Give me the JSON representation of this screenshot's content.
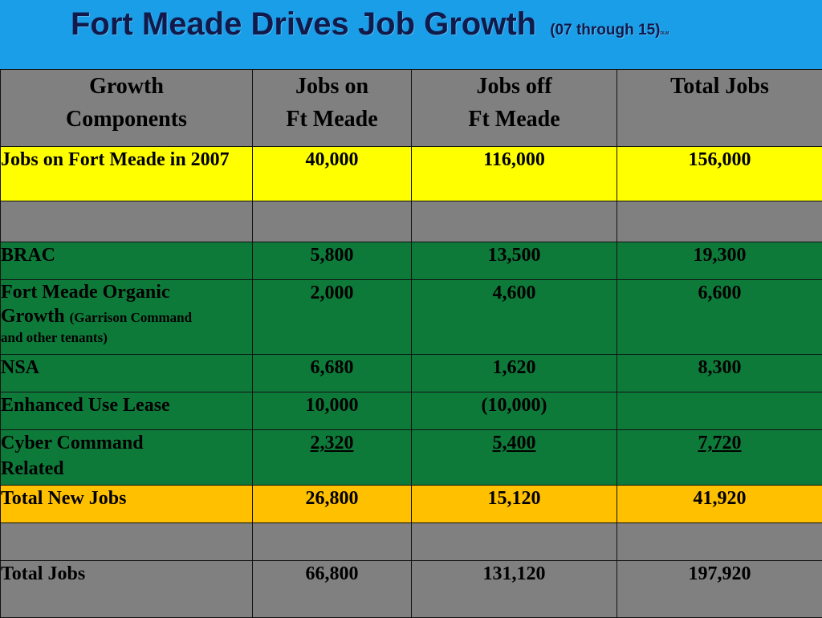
{
  "header": {
    "title": "Fort Meade Drives Job Growth",
    "subtitle": "(07 through 15)",
    "tiny_mark": "DLM"
  },
  "table": {
    "columns": [
      [
        "Growth",
        "Components"
      ],
      [
        "Jobs on",
        "Ft Meade"
      ],
      [
        "Jobs off",
        "Ft Meade"
      ],
      [
        "Total Jobs"
      ]
    ],
    "rows": [
      {
        "label": "Jobs on Fort Meade in 2007",
        "on": "40,000",
        "off": "116,000",
        "total": "156,000"
      },
      {
        "label": "BRAC",
        "on": "5,800",
        "off": "13,500",
        "total": "19,300"
      },
      {
        "label": "Fort Meade Organic",
        "label2": "Growth",
        "note": "(Garrison Command",
        "note2": "and other tenants)",
        "on": "2,000",
        "off": "4,600",
        "total": "6,600"
      },
      {
        "label": "NSA",
        "on": "6,680",
        "off": "1,620",
        "total": "8,300"
      },
      {
        "label": "Enhanced Use Lease",
        "on": "10,000",
        "off": "(10,000)",
        "total": ""
      },
      {
        "label": "Cyber Command",
        "label2": "Related",
        "on": "2,320",
        "off": "5,400",
        "total": "7,720"
      },
      {
        "label": "Total New Jobs",
        "on": "26,800",
        "off": "15,120",
        "total": "41,920"
      },
      {
        "label": "Total Jobs",
        "on": "66,800",
        "off": "131,120",
        "total": "197,920"
      }
    ]
  }
}
